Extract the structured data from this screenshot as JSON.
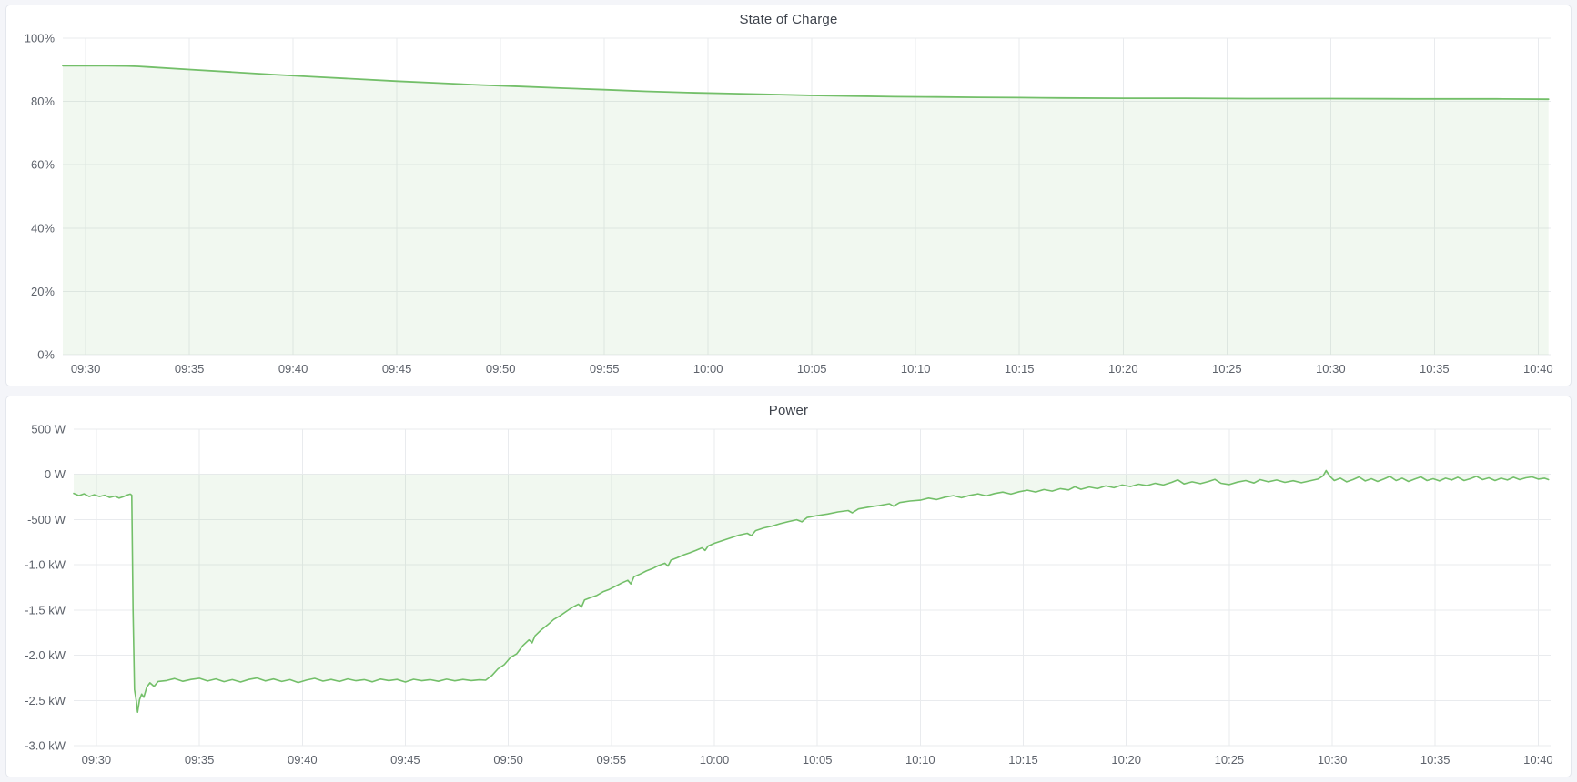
{
  "page": {
    "background_color": "#f4f5f9",
    "panel_background": "#ffffff",
    "panel_border_color": "#e4e7ed",
    "accent_green": "#73bf69"
  },
  "panels": [
    {
      "title": "State of Charge"
    },
    {
      "title": "Power"
    }
  ],
  "chart_data": [
    {
      "type": "area",
      "title": "State of Charge",
      "ylabel": "",
      "xlabel": "",
      "unit": "percent",
      "x_unit": "minutes_after_09:30",
      "xlim": [
        -1.1,
        70.6
      ],
      "ylim": [
        0,
        100
      ],
      "grid": true,
      "legend": "none",
      "line_color": "#73bf69",
      "line_width": 1.8,
      "fill_color": "rgba(115,191,105,0.10)",
      "yticks": [
        {
          "v": 100,
          "label": "100%"
        },
        {
          "v": 80,
          "label": "80%"
        },
        {
          "v": 60,
          "label": "60%"
        },
        {
          "v": 40,
          "label": "40%"
        },
        {
          "v": 20,
          "label": "20%"
        },
        {
          "v": 0,
          "label": "0%"
        }
      ],
      "xticks": [
        {
          "v": 0,
          "label": "09:30"
        },
        {
          "v": 5,
          "label": "09:35"
        },
        {
          "v": 10,
          "label": "09:40"
        },
        {
          "v": 15,
          "label": "09:45"
        },
        {
          "v": 20,
          "label": "09:50"
        },
        {
          "v": 25,
          "label": "09:55"
        },
        {
          "v": 30,
          "label": "10:00"
        },
        {
          "v": 35,
          "label": "10:05"
        },
        {
          "v": 40,
          "label": "10:10"
        },
        {
          "v": 45,
          "label": "10:15"
        },
        {
          "v": 50,
          "label": "10:20"
        },
        {
          "v": 55,
          "label": "10:25"
        },
        {
          "v": 60,
          "label": "10:30"
        },
        {
          "v": 65,
          "label": "10:35"
        },
        {
          "v": 70,
          "label": "10:40"
        }
      ],
      "x": [
        -1.1,
        0,
        1,
        2,
        2.5,
        3,
        5,
        7,
        9,
        11,
        13,
        15,
        17,
        19,
        21,
        23,
        25,
        27,
        29,
        31,
        33,
        35,
        37,
        39,
        41,
        43,
        45,
        47,
        50,
        53,
        56,
        60,
        64,
        68,
        70.5
      ],
      "values": [
        91.3,
        91.3,
        91.3,
        91.2,
        91.1,
        90.9,
        90.1,
        89.3,
        88.5,
        87.8,
        87.1,
        86.4,
        85.8,
        85.2,
        84.7,
        84.2,
        83.7,
        83.2,
        82.8,
        82.5,
        82.2,
        81.9,
        81.7,
        81.5,
        81.4,
        81.3,
        81.2,
        81.1,
        81.0,
        81.0,
        80.9,
        80.9,
        80.8,
        80.8,
        80.7
      ]
    },
    {
      "type": "area",
      "title": "Power",
      "ylabel": "",
      "xlabel": "",
      "unit": "watt",
      "x_unit": "minutes_after_09:30",
      "xlim": [
        -1.1,
        70.6
      ],
      "ylim": [
        -3000,
        500
      ],
      "grid": true,
      "legend": "none",
      "line_color": "#73bf69",
      "line_width": 1.6,
      "fill_color": "rgba(115,191,105,0.10)",
      "yticks": [
        {
          "v": 500,
          "label": "500 W"
        },
        {
          "v": 0,
          "label": "0 W"
        },
        {
          "v": -500,
          "label": "-500 W"
        },
        {
          "v": -1000,
          "label": "-1.0 kW"
        },
        {
          "v": -1500,
          "label": "-1.5 kW"
        },
        {
          "v": -2000,
          "label": "-2.0 kW"
        },
        {
          "v": -2500,
          "label": "-2.5 kW"
        },
        {
          "v": -3000,
          "label": "-3.0 kW"
        }
      ],
      "xticks": [
        {
          "v": 0,
          "label": "09:30"
        },
        {
          "v": 5,
          "label": "09:35"
        },
        {
          "v": 10,
          "label": "09:40"
        },
        {
          "v": 15,
          "label": "09:45"
        },
        {
          "v": 20,
          "label": "09:50"
        },
        {
          "v": 25,
          "label": "09:55"
        },
        {
          "v": 30,
          "label": "10:00"
        },
        {
          "v": 35,
          "label": "10:05"
        },
        {
          "v": 40,
          "label": "10:10"
        },
        {
          "v": 45,
          "label": "10:15"
        },
        {
          "v": 50,
          "label": "10:20"
        },
        {
          "v": 55,
          "label": "10:25"
        },
        {
          "v": 60,
          "label": "10:30"
        },
        {
          "v": 65,
          "label": "10:35"
        },
        {
          "v": 70,
          "label": "10:40"
        }
      ],
      "points": [
        [
          -1.1,
          -210
        ],
        [
          -0.85,
          -235
        ],
        [
          -0.6,
          -215
        ],
        [
          -0.35,
          -245
        ],
        [
          -0.1,
          -225
        ],
        [
          0.15,
          -245
        ],
        [
          0.4,
          -230
        ],
        [
          0.65,
          -255
        ],
        [
          0.9,
          -240
        ],
        [
          1.1,
          -262
        ],
        [
          1.3,
          -248
        ],
        [
          1.5,
          -228
        ],
        [
          1.65,
          -218
        ],
        [
          1.72,
          -230
        ],
        [
          1.78,
          -1500
        ],
        [
          1.85,
          -2380
        ],
        [
          1.95,
          -2520
        ],
        [
          2.0,
          -2630
        ],
        [
          2.1,
          -2490
        ],
        [
          2.2,
          -2430
        ],
        [
          2.3,
          -2465
        ],
        [
          2.45,
          -2350
        ],
        [
          2.6,
          -2305
        ],
        [
          2.8,
          -2345
        ],
        [
          3.0,
          -2290
        ],
        [
          3.4,
          -2280
        ],
        [
          3.8,
          -2258
        ],
        [
          4.2,
          -2288
        ],
        [
          4.6,
          -2268
        ],
        [
          5.0,
          -2255
        ],
        [
          5.4,
          -2285
        ],
        [
          5.8,
          -2262
        ],
        [
          6.2,
          -2292
        ],
        [
          6.6,
          -2270
        ],
        [
          7.0,
          -2296
        ],
        [
          7.4,
          -2268
        ],
        [
          7.8,
          -2252
        ],
        [
          8.2,
          -2284
        ],
        [
          8.6,
          -2263
        ],
        [
          9.0,
          -2290
        ],
        [
          9.4,
          -2270
        ],
        [
          9.8,
          -2302
        ],
        [
          10.2,
          -2275
        ],
        [
          10.6,
          -2256
        ],
        [
          11.0,
          -2286
        ],
        [
          11.4,
          -2268
        ],
        [
          11.8,
          -2290
        ],
        [
          12.2,
          -2262
        ],
        [
          12.6,
          -2282
        ],
        [
          13.0,
          -2270
        ],
        [
          13.4,
          -2294
        ],
        [
          13.8,
          -2264
        ],
        [
          14.2,
          -2280
        ],
        [
          14.6,
          -2268
        ],
        [
          15.0,
          -2296
        ],
        [
          15.4,
          -2266
        ],
        [
          15.8,
          -2282
        ],
        [
          16.2,
          -2270
        ],
        [
          16.6,
          -2288
        ],
        [
          17.0,
          -2265
        ],
        [
          17.4,
          -2283
        ],
        [
          17.8,
          -2268
        ],
        [
          18.2,
          -2280
        ],
        [
          18.6,
          -2272
        ],
        [
          18.9,
          -2276
        ],
        [
          19.2,
          -2225
        ],
        [
          19.5,
          -2150
        ],
        [
          19.8,
          -2105
        ],
        [
          20.1,
          -2025
        ],
        [
          20.4,
          -1985
        ],
        [
          20.7,
          -1895
        ],
        [
          21.0,
          -1830
        ],
        [
          21.15,
          -1862
        ],
        [
          21.3,
          -1785
        ],
        [
          21.6,
          -1720
        ],
        [
          21.9,
          -1665
        ],
        [
          22.2,
          -1605
        ],
        [
          22.5,
          -1565
        ],
        [
          22.8,
          -1518
        ],
        [
          23.1,
          -1472
        ],
        [
          23.4,
          -1435
        ],
        [
          23.55,
          -1468
        ],
        [
          23.7,
          -1388
        ],
        [
          24.0,
          -1362
        ],
        [
          24.3,
          -1338
        ],
        [
          24.6,
          -1298
        ],
        [
          24.9,
          -1272
        ],
        [
          25.2,
          -1238
        ],
        [
          25.5,
          -1202
        ],
        [
          25.8,
          -1172
        ],
        [
          25.95,
          -1212
        ],
        [
          26.1,
          -1132
        ],
        [
          26.4,
          -1102
        ],
        [
          26.7,
          -1068
        ],
        [
          27.0,
          -1042
        ],
        [
          27.3,
          -1008
        ],
        [
          27.6,
          -982
        ],
        [
          27.75,
          -1015
        ],
        [
          27.9,
          -948
        ],
        [
          28.2,
          -922
        ],
        [
          28.5,
          -892
        ],
        [
          28.8,
          -868
        ],
        [
          29.1,
          -842
        ],
        [
          29.4,
          -812
        ],
        [
          29.55,
          -842
        ],
        [
          29.7,
          -792
        ],
        [
          30.0,
          -762
        ],
        [
          30.4,
          -732
        ],
        [
          30.8,
          -702
        ],
        [
          31.2,
          -672
        ],
        [
          31.6,
          -652
        ],
        [
          31.8,
          -678
        ],
        [
          32.0,
          -622
        ],
        [
          32.4,
          -592
        ],
        [
          32.8,
          -572
        ],
        [
          33.2,
          -545
        ],
        [
          33.6,
          -522
        ],
        [
          34.0,
          -502
        ],
        [
          34.25,
          -525
        ],
        [
          34.5,
          -478
        ],
        [
          35.0,
          -455
        ],
        [
          35.5,
          -438
        ],
        [
          36.0,
          -415
        ],
        [
          36.5,
          -400
        ],
        [
          36.7,
          -425
        ],
        [
          37.0,
          -382
        ],
        [
          37.5,
          -362
        ],
        [
          38.0,
          -345
        ],
        [
          38.5,
          -325
        ],
        [
          38.7,
          -352
        ],
        [
          39.0,
          -312
        ],
        [
          39.5,
          -295
        ],
        [
          40.0,
          -285
        ],
        [
          40.4,
          -262
        ],
        [
          40.8,
          -278
        ],
        [
          41.2,
          -252
        ],
        [
          41.6,
          -235
        ],
        [
          42.0,
          -258
        ],
        [
          42.4,
          -232
        ],
        [
          42.8,
          -215
        ],
        [
          43.2,
          -238
        ],
        [
          43.6,
          -212
        ],
        [
          44.0,
          -196
        ],
        [
          44.4,
          -218
        ],
        [
          44.8,
          -192
        ],
        [
          45.2,
          -175
        ],
        [
          45.6,
          -195
        ],
        [
          46.0,
          -168
        ],
        [
          46.4,
          -185
        ],
        [
          46.8,
          -158
        ],
        [
          47.2,
          -172
        ],
        [
          47.5,
          -138
        ],
        [
          47.8,
          -165
        ],
        [
          48.2,
          -140
        ],
        [
          48.6,
          -158
        ],
        [
          49.0,
          -128
        ],
        [
          49.4,
          -148
        ],
        [
          49.8,
          -118
        ],
        [
          50.2,
          -135
        ],
        [
          50.6,
          -108
        ],
        [
          51.0,
          -125
        ],
        [
          51.4,
          -98
        ],
        [
          51.8,
          -118
        ],
        [
          52.2,
          -88
        ],
        [
          52.5,
          -60
        ],
        [
          52.8,
          -105
        ],
        [
          53.2,
          -82
        ],
        [
          53.6,
          -102
        ],
        [
          54.0,
          -78
        ],
        [
          54.3,
          -55
        ],
        [
          54.6,
          -98
        ],
        [
          55.0,
          -112
        ],
        [
          55.4,
          -85
        ],
        [
          55.8,
          -68
        ],
        [
          56.2,
          -95
        ],
        [
          56.5,
          -58
        ],
        [
          56.9,
          -82
        ],
        [
          57.3,
          -62
        ],
        [
          57.7,
          -88
        ],
        [
          58.1,
          -70
        ],
        [
          58.5,
          -92
        ],
        [
          58.9,
          -72
        ],
        [
          59.3,
          -52
        ],
        [
          59.55,
          -18
        ],
        [
          59.7,
          42
        ],
        [
          59.9,
          -25
        ],
        [
          60.1,
          -68
        ],
        [
          60.4,
          -42
        ],
        [
          60.7,
          -82
        ],
        [
          61.0,
          -58
        ],
        [
          61.3,
          -28
        ],
        [
          61.6,
          -72
        ],
        [
          61.9,
          -48
        ],
        [
          62.2,
          -78
        ],
        [
          62.5,
          -52
        ],
        [
          62.8,
          -22
        ],
        [
          63.1,
          -68
        ],
        [
          63.4,
          -42
        ],
        [
          63.7,
          -78
        ],
        [
          64.0,
          -52
        ],
        [
          64.3,
          -28
        ],
        [
          64.6,
          -68
        ],
        [
          64.9,
          -48
        ],
        [
          65.2,
          -72
        ],
        [
          65.5,
          -42
        ],
        [
          65.8,
          -62
        ],
        [
          66.1,
          -32
        ],
        [
          66.4,
          -68
        ],
        [
          66.7,
          -48
        ],
        [
          67.0,
          -22
        ],
        [
          67.3,
          -58
        ],
        [
          67.6,
          -38
        ],
        [
          67.9,
          -68
        ],
        [
          68.2,
          -42
        ],
        [
          68.5,
          -62
        ],
        [
          68.8,
          -32
        ],
        [
          69.1,
          -58
        ],
        [
          69.4,
          -38
        ],
        [
          69.7,
          -28
        ],
        [
          70.0,
          -52
        ],
        [
          70.3,
          -42
        ],
        [
          70.5,
          -58
        ]
      ]
    }
  ]
}
